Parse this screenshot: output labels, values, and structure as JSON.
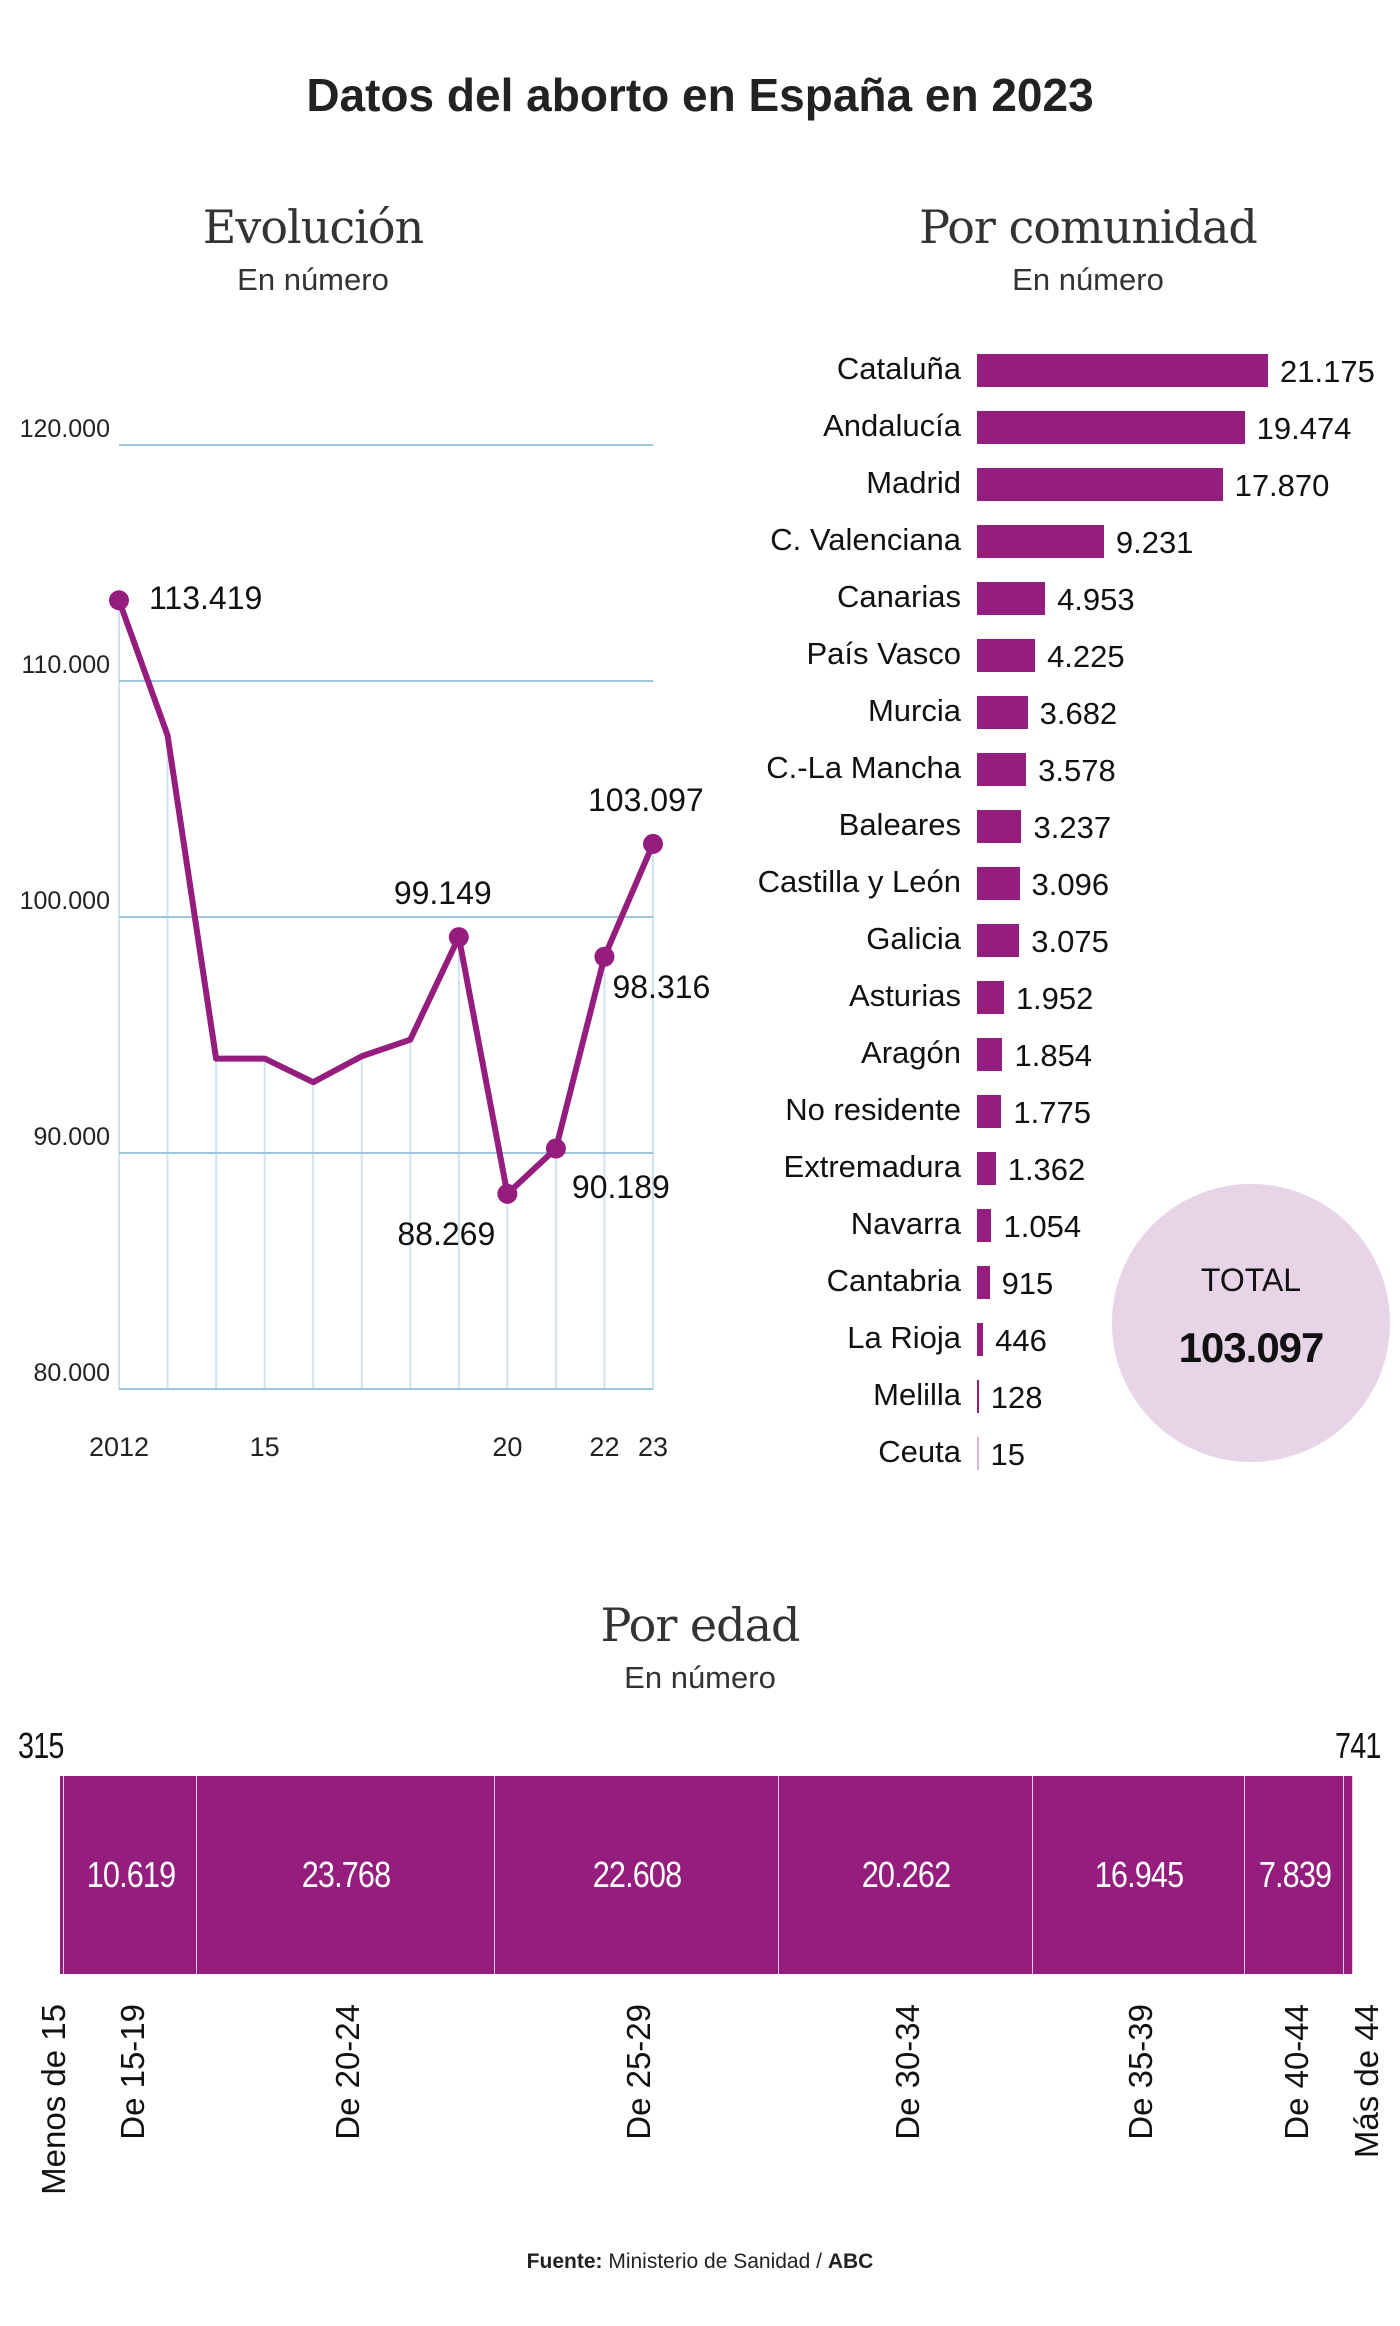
{
  "title": "Datos del aborto en España en 2023",
  "colors": {
    "accent": "#951d7e",
    "total_circle": "#e7d4e6",
    "grid": "#9cc5de"
  },
  "chart_data": [
    {
      "type": "line",
      "title": "Evolución",
      "subtitle": "En número",
      "x": [
        2012,
        2013,
        2014,
        2015,
        2016,
        2017,
        2018,
        2019,
        2020,
        2021,
        2022,
        2023
      ],
      "values": [
        113419,
        107700,
        94000,
        94000,
        93000,
        94100,
        94800,
        99149,
        88269,
        90189,
        98316,
        103097
      ],
      "data_labels": {
        "0": "113.419",
        "7": "99.149",
        "8": "88.269",
        "9": "90.189",
        "10": "98.316",
        "11": "103.097"
      },
      "ylim": [
        80000,
        120000
      ],
      "yticks": [
        {
          "value": 120000,
          "label": "120.000"
        },
        {
          "value": 110000,
          "label": "110.000"
        },
        {
          "value": 100000,
          "label": "100.000"
        },
        {
          "value": 90000,
          "label": "90.000"
        },
        {
          "value": 80000,
          "label": "80.000"
        }
      ],
      "xticks": [
        {
          "value": 2012,
          "label": "2012"
        },
        {
          "value": 2015,
          "label": "15"
        },
        {
          "value": 2020,
          "label": "20"
        },
        {
          "value": 2022,
          "label": "22"
        },
        {
          "value": 2023,
          "label": "23"
        }
      ],
      "grid": true
    },
    {
      "type": "bar",
      "orientation": "horizontal",
      "title": "Por comunidad",
      "subtitle": "En número",
      "categories": [
        "Cataluña",
        "Andalucía",
        "Madrid",
        "C. Valenciana",
        "Canarias",
        "País Vasco",
        "Murcia",
        "C.-La Mancha",
        "Baleares",
        "Castilla y León",
        "Galicia",
        "Asturias",
        "Aragón",
        "No residente",
        "Extremadura",
        "Navarra",
        "Cantabria",
        "La Rioja",
        "Melilla",
        "Ceuta"
      ],
      "values": [
        21175,
        19474,
        17870,
        9231,
        4953,
        4225,
        3682,
        3578,
        3237,
        3096,
        3075,
        1952,
        1854,
        1775,
        1362,
        1054,
        915,
        446,
        128,
        15
      ],
      "value_labels": [
        "21.175",
        "19.474",
        "17.870",
        "9.231",
        "4.953",
        "4.225",
        "3.682",
        "3.578",
        "3.237",
        "3.096",
        "3.075",
        "1.952",
        "1.854",
        "1.775",
        "1.362",
        "1.054",
        "915",
        "446",
        "128",
        "15"
      ],
      "total": {
        "label": "TOTAL",
        "value": "103.097"
      }
    },
    {
      "type": "bar",
      "orientation": "stacked-horizontal",
      "title": "Por edad",
      "subtitle": "En número",
      "categories": [
        "Menos de 15",
        "De 15-19",
        "De 20-24",
        "De 25-29",
        "De 30-34",
        "De 35-39",
        "De 40-44",
        "Más de 44"
      ],
      "values": [
        315,
        10619,
        23768,
        22608,
        20262,
        16945,
        7839,
        741
      ],
      "value_labels": [
        "315",
        "10.619",
        "23.768",
        "22.608",
        "20.262",
        "16.945",
        "7.839",
        "741"
      ]
    }
  ],
  "source": {
    "label": "Fuente:",
    "text": "Ministerio de Sanidad /",
    "brand": "ABC"
  }
}
